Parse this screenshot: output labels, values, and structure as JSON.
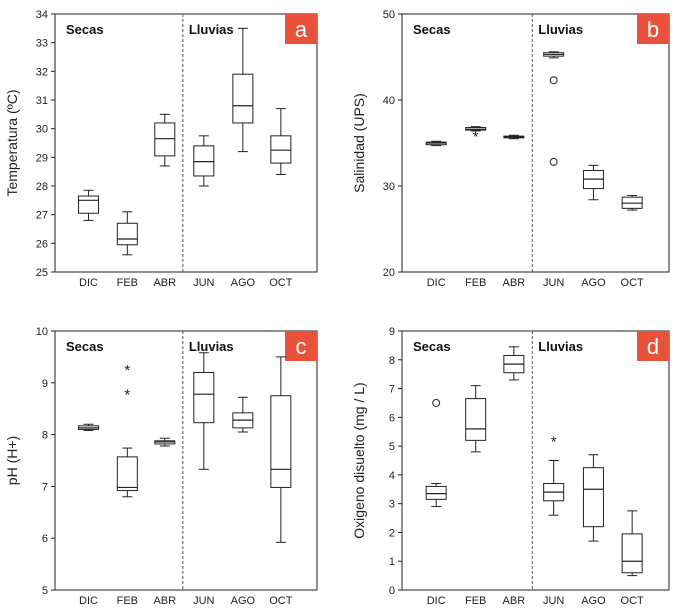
{
  "chart_data": [
    {
      "panel_letter": "a",
      "type": "boxplot",
      "ylabel": "Temperatura (ºC)",
      "xlabel": "",
      "ylim": [
        25,
        34
      ],
      "yticks": [
        25,
        26,
        27,
        28,
        29,
        30,
        31,
        32,
        33,
        34
      ],
      "categories": [
        "DIC",
        "FEB",
        "ABR",
        "JUN",
        "AGO",
        "OCT"
      ],
      "season_labels": {
        "dry": "Secas",
        "rainy": "Lluvias"
      },
      "boxes": [
        {
          "min": 26.8,
          "q1": 27.05,
          "median": 27.5,
          "q3": 27.65,
          "max": 27.85,
          "outliers": []
        },
        {
          "min": 25.6,
          "q1": 25.95,
          "median": 26.15,
          "q3": 26.7,
          "max": 27.1,
          "outliers": []
        },
        {
          "min": 28.7,
          "q1": 29.05,
          "median": 29.65,
          "q3": 30.2,
          "max": 30.5,
          "outliers": []
        },
        {
          "min": 28.0,
          "q1": 28.35,
          "median": 28.85,
          "q3": 29.4,
          "max": 29.75,
          "outliers": []
        },
        {
          "min": 29.2,
          "q1": 30.2,
          "median": 30.8,
          "q3": 31.9,
          "max": 33.5,
          "outliers": []
        },
        {
          "min": 28.4,
          "q1": 28.8,
          "median": 29.25,
          "q3": 29.75,
          "max": 30.7,
          "outliers": []
        }
      ]
    },
    {
      "panel_letter": "b",
      "type": "boxplot",
      "ylabel": "Salinidad (UPS)",
      "xlabel": "",
      "ylim": [
        20,
        50
      ],
      "yticks": [
        20,
        30,
        40,
        50
      ],
      "categories": [
        "DIC",
        "FEB",
        "ABR",
        "JUN",
        "AGO",
        "OCT"
      ],
      "season_labels": {
        "dry": "Secas",
        "rainy": "Lluvias"
      },
      "boxes": [
        {
          "min": 34.7,
          "q1": 34.8,
          "median": 35.0,
          "q3": 35.1,
          "max": 35.2,
          "outliers": []
        },
        {
          "min": 36.4,
          "q1": 36.5,
          "median": 36.6,
          "q3": 36.8,
          "max": 36.9,
          "outliers": [
            {
              "value": 35.9,
              "marker": "star"
            }
          ]
        },
        {
          "min": 35.5,
          "q1": 35.6,
          "median": 35.7,
          "q3": 35.8,
          "max": 35.9,
          "outliers": []
        },
        {
          "min": 44.9,
          "q1": 45.1,
          "median": 45.3,
          "q3": 45.5,
          "max": 45.6,
          "outliers": [
            {
              "value": 42.3,
              "marker": "circle"
            },
            {
              "value": 32.8,
              "marker": "circle"
            }
          ]
        },
        {
          "min": 28.4,
          "q1": 29.7,
          "median": 30.8,
          "q3": 31.8,
          "max": 32.4,
          "outliers": []
        },
        {
          "min": 27.2,
          "q1": 27.4,
          "median": 28.0,
          "q3": 28.7,
          "max": 28.9,
          "outliers": []
        }
      ]
    },
    {
      "panel_letter": "c",
      "type": "boxplot",
      "ylabel": "pH (H+)",
      "xlabel": "",
      "ylim": [
        5,
        10
      ],
      "yticks": [
        5,
        6,
        7,
        8,
        9,
        10
      ],
      "categories": [
        "DIC",
        "FEB",
        "ABR",
        "JUN",
        "AGO",
        "OCT"
      ],
      "season_labels": {
        "dry": "Secas",
        "rainy": "Lluvias"
      },
      "boxes": [
        {
          "min": 8.08,
          "q1": 8.1,
          "median": 8.13,
          "q3": 8.17,
          "max": 8.2,
          "outliers": []
        },
        {
          "min": 6.8,
          "q1": 6.92,
          "median": 6.98,
          "q3": 7.57,
          "max": 7.74,
          "outliers": [
            {
              "value": 9.27,
              "marker": "star"
            },
            {
              "value": 8.79,
              "marker": "star"
            }
          ]
        },
        {
          "min": 7.78,
          "q1": 7.82,
          "median": 7.86,
          "q3": 7.88,
          "max": 7.93,
          "outliers": []
        },
        {
          "min": 7.33,
          "q1": 8.23,
          "median": 8.78,
          "q3": 9.2,
          "max": 9.58,
          "outliers": []
        },
        {
          "min": 8.05,
          "q1": 8.13,
          "median": 8.28,
          "q3": 8.42,
          "max": 8.72,
          "outliers": []
        },
        {
          "min": 5.92,
          "q1": 6.98,
          "median": 7.33,
          "q3": 8.75,
          "max": 9.5,
          "outliers": []
        }
      ]
    },
    {
      "panel_letter": "d",
      "type": "boxplot",
      "ylabel": "Oxigeno disuelto (mg / L)",
      "xlabel": "",
      "ylim": [
        0,
        9
      ],
      "yticks": [
        0,
        1,
        2,
        3,
        4,
        5,
        6,
        7,
        8,
        9
      ],
      "categories": [
        "DIC",
        "FEB",
        "ABR",
        "JUN",
        "AGO",
        "OCT"
      ],
      "season_labels": {
        "dry": "Secas",
        "rainy": "Lluvias"
      },
      "boxes": [
        {
          "min": 2.9,
          "q1": 3.15,
          "median": 3.35,
          "q3": 3.6,
          "max": 3.7,
          "outliers": [
            {
              "value": 6.5,
              "marker": "circle"
            }
          ]
        },
        {
          "min": 4.8,
          "q1": 5.2,
          "median": 5.6,
          "q3": 6.65,
          "max": 7.1,
          "outliers": []
        },
        {
          "min": 7.3,
          "q1": 7.55,
          "median": 7.85,
          "q3": 8.15,
          "max": 8.45,
          "outliers": []
        },
        {
          "min": 2.6,
          "q1": 3.1,
          "median": 3.4,
          "q3": 3.7,
          "max": 4.5,
          "outliers": [
            {
              "value": 5.2,
              "marker": "star"
            }
          ]
        },
        {
          "min": 1.7,
          "q1": 2.2,
          "median": 3.5,
          "q3": 4.25,
          "max": 4.7,
          "outliers": []
        },
        {
          "min": 0.5,
          "q1": 0.6,
          "median": 1.0,
          "q3": 1.95,
          "max": 2.75,
          "outliers": []
        }
      ]
    }
  ],
  "style": {
    "badge_color": "#e8523a",
    "box_stroke": "#222222",
    "divider_color": "#555555"
  }
}
